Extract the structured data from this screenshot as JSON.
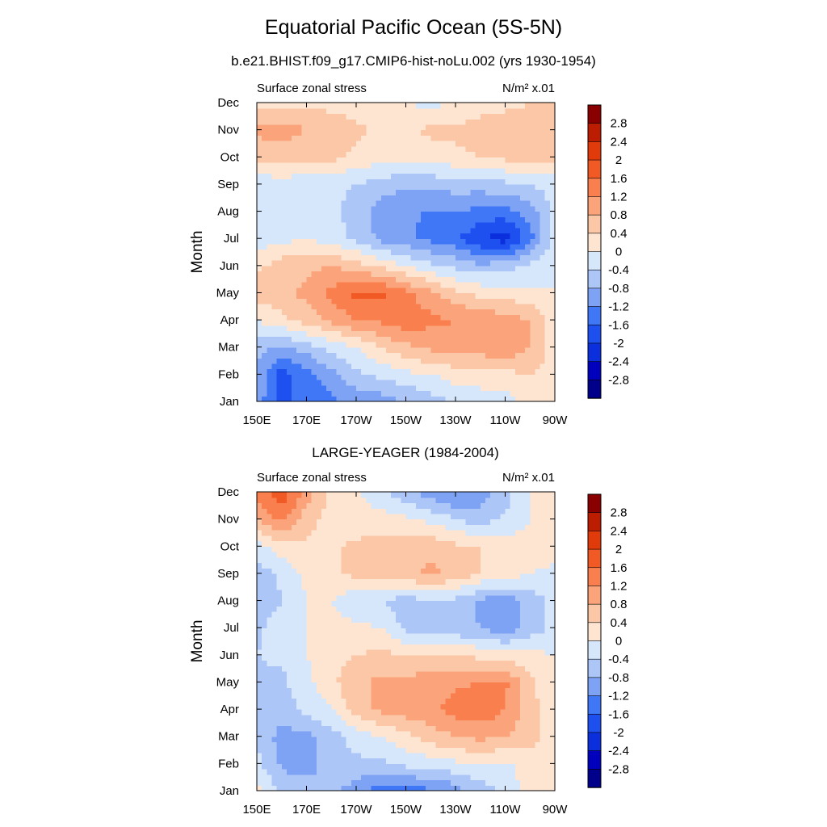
{
  "figure": {
    "title": "Equatorial Pacific Ocean (5S-5N)"
  },
  "chart_data": [
    {
      "type": "heatmap",
      "title": "b.e21.BHIST.f09_g17.CMIP6-hist-noLu.002 (yrs 1930-1954)",
      "left_label": "Surface zonal stress",
      "units": "N/m² x.01",
      "ylabel": "Month",
      "xlabel": "",
      "x_ticks": [
        "150E",
        "170E",
        "170W",
        "150W",
        "130W",
        "110W",
        "90W"
      ],
      "y_ticks": [
        "Jan",
        "Feb",
        "Mar",
        "Apr",
        "May",
        "Jun",
        "Jul",
        "Aug",
        "Sep",
        "Oct",
        "Nov",
        "Dec"
      ],
      "xlim": [
        150,
        270
      ],
      "ylim": [
        "Jan",
        "Dec"
      ],
      "x": [
        150,
        160,
        170,
        180,
        190,
        200,
        210,
        220,
        230,
        240,
        250,
        260,
        270
      ],
      "months": [
        "Jan",
        "Feb",
        "Mar",
        "Apr",
        "May",
        "Jun",
        "Jul",
        "Aug",
        "Sep",
        "Oct",
        "Nov",
        "Dec"
      ],
      "z": [
        [
          -1.0,
          -1.7,
          -1.5,
          -1.3,
          -1.1,
          -1.0,
          -0.8,
          -0.6,
          -0.4,
          -0.3,
          -0.2,
          0.3,
          0.2
        ],
        [
          -0.9,
          -1.8,
          -1.4,
          -0.9,
          -0.5,
          -0.3,
          -0.1,
          0.0,
          0.2,
          0.3,
          0.3,
          0.4,
          0.2
        ],
        [
          -0.6,
          -0.9,
          -0.6,
          -0.3,
          0.0,
          0.4,
          0.7,
          0.9,
          1.0,
          1.0,
          1.1,
          0.8,
          0.2
        ],
        [
          0.0,
          0.3,
          0.6,
          0.9,
          1.2,
          1.3,
          1.5,
          1.3,
          1.2,
          1.1,
          1.0,
          0.8,
          0.2
        ],
        [
          0.6,
          0.7,
          0.9,
          1.3,
          1.7,
          1.7,
          1.3,
          0.9,
          0.5,
          0.3,
          0.2,
          0.1,
          0.0
        ],
        [
          0.3,
          0.6,
          0.7,
          0.8,
          0.6,
          0.3,
          0.0,
          -0.3,
          -0.5,
          -0.7,
          -0.6,
          -0.3,
          0.0
        ],
        [
          -0.2,
          -0.1,
          0.0,
          -0.2,
          -0.5,
          -0.9,
          -1.1,
          -1.3,
          -1.5,
          -2.0,
          -2.2,
          -1.4,
          -0.2
        ],
        [
          -0.3,
          -0.2,
          -0.2,
          -0.3,
          -0.6,
          -1.0,
          -1.2,
          -1.2,
          -1.2,
          -1.3,
          -1.4,
          -1.0,
          -0.3
        ],
        [
          -0.3,
          -0.2,
          -0.3,
          -0.3,
          -0.4,
          -0.6,
          -0.7,
          -0.7,
          -0.6,
          -0.6,
          -0.5,
          -0.4,
          -0.2
        ],
        [
          0.5,
          0.6,
          0.5,
          0.5,
          0.3,
          0.2,
          0.1,
          0.2,
          0.3,
          0.4,
          0.5,
          0.6,
          0.5
        ],
        [
          0.9,
          1.0,
          0.8,
          0.6,
          0.5,
          0.3,
          0.3,
          0.5,
          0.5,
          0.6,
          0.6,
          0.7,
          0.7
        ],
        [
          0.2,
          0.3,
          0.3,
          0.3,
          0.2,
          0.1,
          0.0,
          -0.1,
          0.0,
          0.2,
          0.3,
          0.4,
          0.5
        ]
      ],
      "levels": [
        -2.8,
        -2.4,
        -2.0,
        -1.6,
        -1.2,
        -0.8,
        -0.4,
        0,
        0.4,
        0.8,
        1.2,
        1.6,
        2.0,
        2.4,
        2.8
      ],
      "colorbar_labels": [
        "2.8",
        "2.4",
        "2",
        "1.6",
        "1.2",
        "0.8",
        "0.4",
        "0",
        "-0.4",
        "-0.8",
        "-1.2",
        "-1.6",
        "-2",
        "-2.4",
        "-2.8"
      ],
      "colors": [
        "#00008b",
        "#0000bd",
        "#0b2fdc",
        "#1e50f0",
        "#3f77f6",
        "#7ea3f5",
        "#adc6f8",
        "#d6e6fb",
        "#fde5d2",
        "#fcc7a7",
        "#fba47b",
        "#f9804e",
        "#f25a25",
        "#e23b0b",
        "#bc1d00",
        "#8a0000"
      ]
    },
    {
      "type": "heatmap",
      "title": "LARGE-YEAGER (1984-2004)",
      "left_label": "Surface zonal stress",
      "units": "N/m² x.01",
      "ylabel": "Month",
      "xlabel": "",
      "x_ticks": [
        "150E",
        "170E",
        "170W",
        "150W",
        "130W",
        "110W",
        "90W"
      ],
      "y_ticks": [
        "Jan",
        "Feb",
        "Mar",
        "Apr",
        "May",
        "Jun",
        "Jul",
        "Aug",
        "Sep",
        "Oct",
        "Nov",
        "Dec"
      ],
      "xlim": [
        150,
        270
      ],
      "ylim": [
        "Jan",
        "Dec"
      ],
      "x": [
        150,
        160,
        170,
        180,
        190,
        200,
        210,
        220,
        230,
        240,
        250,
        260,
        270
      ],
      "months": [
        "Jan",
        "Feb",
        "Mar",
        "Apr",
        "May",
        "Jun",
        "Jul",
        "Aug",
        "Sep",
        "Oct",
        "Nov",
        "Dec"
      ],
      "z": [
        [
          0.2,
          -0.5,
          -0.6,
          -0.7,
          -1.0,
          -1.5,
          -1.4,
          -1.3,
          -1.0,
          -0.6,
          -0.3,
          0.2,
          0.1
        ],
        [
          -0.3,
          -0.9,
          -1.0,
          -0.6,
          -0.5,
          -0.5,
          -0.3,
          -0.2,
          -0.1,
          0.0,
          -0.1,
          0.2,
          0.1
        ],
        [
          -0.4,
          -1.0,
          -0.9,
          -0.6,
          -0.2,
          0.0,
          0.3,
          0.6,
          0.8,
          0.9,
          0.8,
          0.6,
          0.2
        ],
        [
          -0.4,
          -0.6,
          -0.3,
          0.0,
          0.6,
          0.9,
          1.0,
          1.1,
          1.4,
          1.5,
          1.2,
          0.5,
          0.2
        ],
        [
          -0.5,
          -0.5,
          -0.1,
          0.3,
          0.7,
          0.9,
          0.9,
          1.0,
          1.1,
          1.2,
          1.3,
          0.5,
          0.1
        ],
        [
          -0.4,
          -0.3,
          0.0,
          0.2,
          0.4,
          0.5,
          0.4,
          0.5,
          0.4,
          0.3,
          0.2,
          0.1,
          0.0
        ],
        [
          -0.5,
          -0.1,
          0.0,
          0.1,
          0.1,
          0.0,
          -0.5,
          -0.6,
          -0.7,
          -0.8,
          -1.1,
          -0.6,
          -0.3
        ],
        [
          -0.8,
          -0.4,
          0.0,
          0.0,
          -0.3,
          -0.4,
          -0.6,
          -0.4,
          -0.5,
          -0.9,
          -1.0,
          -0.7,
          -0.2
        ],
        [
          -0.6,
          -0.3,
          0.1,
          0.3,
          0.5,
          0.6,
          0.7,
          0.9,
          0.7,
          0.4,
          0.2,
          0.0,
          -0.1
        ],
        [
          -0.2,
          0.2,
          0.3,
          0.3,
          0.5,
          0.6,
          0.6,
          0.7,
          0.5,
          0.4,
          0.2,
          0.1,
          0.2
        ],
        [
          0.8,
          1.3,
          0.6,
          0.2,
          0.1,
          0.2,
          0.1,
          -0.1,
          -0.4,
          -0.6,
          -0.3,
          0.0,
          0.3
        ],
        [
          1.4,
          1.9,
          1.0,
          0.3,
          0.1,
          -0.3,
          -0.7,
          -1.0,
          -1.3,
          -1.0,
          -0.6,
          0.0,
          0.2
        ]
      ],
      "levels": [
        -2.8,
        -2.4,
        -2.0,
        -1.6,
        -1.2,
        -0.8,
        -0.4,
        0,
        0.4,
        0.8,
        1.2,
        1.6,
        2.0,
        2.4,
        2.8
      ],
      "colorbar_labels": [
        "2.8",
        "2.4",
        "2",
        "1.6",
        "1.2",
        "0.8",
        "0.4",
        "0",
        "-0.4",
        "-0.8",
        "-1.2",
        "-1.6",
        "-2",
        "-2.4",
        "-2.8"
      ],
      "colors": [
        "#00008b",
        "#0000bd",
        "#0b2fdc",
        "#1e50f0",
        "#3f77f6",
        "#7ea3f5",
        "#adc6f8",
        "#d6e6fb",
        "#fde5d2",
        "#fcc7a7",
        "#fba47b",
        "#f9804e",
        "#f25a25",
        "#e23b0b",
        "#bc1d00",
        "#8a0000"
      ]
    }
  ]
}
